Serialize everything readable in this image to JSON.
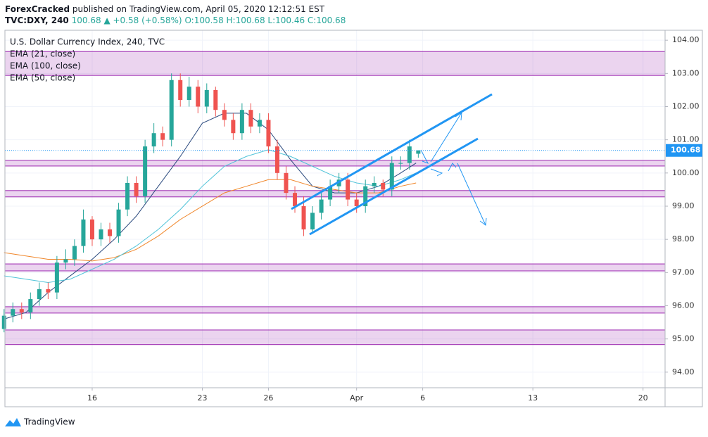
{
  "header": {
    "author": "ForexCracked",
    "published": "published on TradingView.com, April 05, 2020 12:12:51 EST",
    "symbol": "TVC:DXY, 240",
    "price": "100.68",
    "change": "▲ +0.58 (+0.58%)",
    "ohlc": "O:100.58 H:100.68 L:100.46 C:100.68"
  },
  "chart_data": {
    "type": "candlestick",
    "title": "U.S. Dollar Currency Index, 240, TVC",
    "x": [
      -4.0,
      -3.6,
      -3.2,
      -2.8,
      -2.4,
      -2.0,
      -1.6,
      -1.2,
      -0.8,
      -0.4,
      0.0,
      0.4,
      0.8,
      1.2,
      1.6,
      2.0,
      2.4,
      2.8,
      3.2,
      3.6,
      4.0,
      4.4,
      4.8,
      5.2,
      5.6,
      6.0,
      6.4,
      6.8,
      7.2,
      7.6,
      8.0,
      8.4,
      8.8,
      9.2,
      9.6,
      10.0,
      10.4,
      10.8,
      11.2,
      11.6,
      12.0,
      12.4,
      12.8,
      13.2,
      13.6,
      14.0,
      14.4,
      14.8
    ],
    "open": [
      95.3,
      95.7,
      95.9,
      95.8,
      96.2,
      96.5,
      96.4,
      97.3,
      97.4,
      97.8,
      98.6,
      98.0,
      98.3,
      98.1,
      98.9,
      99.7,
      99.3,
      100.8,
      101.2,
      101.0,
      102.8,
      102.2,
      102.6,
      102.0,
      102.5,
      101.9,
      101.6,
      101.2,
      101.9,
      101.4,
      101.6,
      100.8,
      100.0,
      99.4,
      99.0,
      98.3,
      98.8,
      99.2,
      99.6,
      99.8,
      99.2,
      99.0,
      99.6,
      99.7,
      99.5,
      100.3,
      100.3,
      100.58
    ],
    "high": [
      95.9,
      96.1,
      96.1,
      96.4,
      96.7,
      96.7,
      97.5,
      97.7,
      98.0,
      98.9,
      98.7,
      98.5,
      98.5,
      99.1,
      99.9,
      99.9,
      101.0,
      101.5,
      101.4,
      103.0,
      103.0,
      102.9,
      102.8,
      102.7,
      102.6,
      102.1,
      101.8,
      102.1,
      102.1,
      101.8,
      101.8,
      101.0,
      100.2,
      99.6,
      99.3,
      99.0,
      99.4,
      99.8,
      100.0,
      100.0,
      99.4,
      99.8,
      99.9,
      99.8,
      100.5,
      100.5,
      101.0,
      100.68
    ],
    "low": [
      95.2,
      95.5,
      95.6,
      95.6,
      96.0,
      96.2,
      96.2,
      97.1,
      97.2,
      97.6,
      97.8,
      97.8,
      97.9,
      97.9,
      98.7,
      99.1,
      99.1,
      100.6,
      100.8,
      100.8,
      102.0,
      102.0,
      101.8,
      101.8,
      101.7,
      101.4,
      101.0,
      101.0,
      101.2,
      101.2,
      100.6,
      99.8,
      99.2,
      98.8,
      98.1,
      98.2,
      98.6,
      99.0,
      99.4,
      99.0,
      98.8,
      98.8,
      99.4,
      99.3,
      99.3,
      100.1,
      100.1,
      100.46
    ],
    "close": [
      95.7,
      95.9,
      95.8,
      96.2,
      96.5,
      96.4,
      97.3,
      97.4,
      97.8,
      98.6,
      98.0,
      98.3,
      98.1,
      98.9,
      99.7,
      99.3,
      100.8,
      101.2,
      101.0,
      102.8,
      102.2,
      102.6,
      102.0,
      102.5,
      101.9,
      101.6,
      101.2,
      101.9,
      101.4,
      101.6,
      100.8,
      100.0,
      99.4,
      99.0,
      98.3,
      98.8,
      99.2,
      99.6,
      99.8,
      99.2,
      99.0,
      99.6,
      99.7,
      99.5,
      100.3,
      100.3,
      100.8,
      100.68
    ],
    "up_color": "#26a69a",
    "down_color": "#ef5350",
    "series": [
      {
        "name": "EMA (21, close)",
        "color": "#2b4a7e",
        "x": [
          -4,
          -3,
          -2,
          -1,
          0,
          1,
          2,
          3,
          4,
          5,
          6,
          7,
          8,
          9,
          10,
          11,
          12,
          13,
          14,
          14.7
        ],
        "values": [
          95.6,
          95.8,
          96.4,
          96.9,
          97.4,
          98.0,
          98.7,
          99.6,
          100.5,
          101.5,
          101.8,
          101.8,
          101.3,
          100.4,
          99.6,
          99.4,
          99.4,
          99.6,
          100.0,
          100.3
        ]
      },
      {
        "name": "EMA (100, close)",
        "color": "#f0862a",
        "x": [
          -4,
          -3,
          -2,
          -1,
          0,
          1,
          2,
          3,
          4,
          5,
          6,
          7,
          8,
          9,
          10,
          11,
          12,
          13,
          14,
          14.7
        ],
        "values": [
          97.6,
          97.5,
          97.4,
          97.4,
          97.35,
          97.45,
          97.7,
          98.1,
          98.6,
          99.0,
          99.4,
          99.6,
          99.8,
          99.8,
          99.6,
          99.5,
          99.4,
          99.4,
          99.6,
          99.7
        ]
      },
      {
        "name": "EMA (50, close)",
        "color": "#4fc3d8",
        "x": [
          -4,
          -3,
          -2,
          -1,
          0,
          1,
          2,
          3,
          4,
          5,
          6,
          7,
          8,
          9,
          10,
          11,
          12,
          13,
          14,
          14.7
        ],
        "values": [
          96.9,
          96.8,
          96.7,
          96.8,
          97.1,
          97.4,
          97.8,
          98.3,
          98.9,
          99.6,
          100.2,
          100.5,
          100.7,
          100.5,
          100.2,
          99.9,
          99.7,
          99.6,
          99.8,
          100.0
        ]
      }
    ],
    "zones": [
      [
        102.94,
        103.66
      ],
      [
        100.21,
        100.38
      ],
      [
        99.28,
        99.47
      ],
      [
        97.05,
        97.26
      ],
      [
        95.78,
        95.97
      ],
      [
        94.83,
        95.27
      ]
    ],
    "zone_color": "#9c27b0",
    "last_price": 100.68,
    "last_price_color": "#2196f3",
    "xlim": [
      -3.96,
      26
    ],
    "ylim": [
      93.53,
      104.3
    ],
    "xticks": [
      {
        "value": 0,
        "label": "16"
      },
      {
        "value": 5,
        "label": "23"
      },
      {
        "value": 8,
        "label": "26"
      },
      {
        "value": 12,
        "label": "Apr"
      },
      {
        "value": 15,
        "label": "6"
      },
      {
        "value": 20,
        "label": "13"
      },
      {
        "value": 25,
        "label": "20"
      }
    ],
    "yticks": [
      {
        "value": 94,
        "label": "94.00"
      },
      {
        "value": 95,
        "label": "95.00"
      },
      {
        "value": 96,
        "label": "96.00"
      },
      {
        "value": 97,
        "label": "97.00"
      },
      {
        "value": 98,
        "label": "98.00"
      },
      {
        "value": 99,
        "label": "99.00"
      },
      {
        "value": 100,
        "label": "100.00"
      },
      {
        "value": 101,
        "label": "101.00"
      },
      {
        "value": 102,
        "label": "102.00"
      },
      {
        "value": 103,
        "label": "103.00"
      },
      {
        "value": 104,
        "label": "104.00"
      }
    ],
    "grid": true
  },
  "footer": {
    "brand": "TradingView"
  }
}
